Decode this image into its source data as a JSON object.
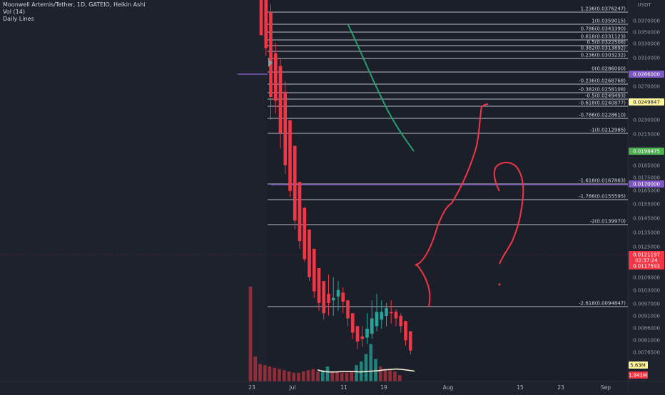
{
  "header": {
    "title": "Moonwell Artemis/Tether, 1D, GATEIO, Heikin Ashi",
    "vol": "Vol (14)",
    "indicator": "Daily Lines"
  },
  "chart_data": {
    "type": "candlestick",
    "heikin_ashi": true,
    "currency": "USDT",
    "price_range": [
      0.0097,
      0.0385
    ],
    "axis_ticks": [
      "0.0370000",
      "0.0350000",
      "0.0330000",
      "0.0310000",
      "0.0270000",
      "0.0230000",
      "0.0215000",
      "0.0185000",
      "0.0175000",
      "0.0165000",
      "0.0155000",
      "0.0145000",
      "0.0135000",
      "0.0125000",
      "0.0109000",
      "0.0103000",
      "0.0097000",
      "0.0091000",
      "0.0086000",
      "0.0081000",
      "0.0076500"
    ],
    "x_ticks": [
      "23",
      "Jul",
      "11",
      "19",
      "Aug",
      "15",
      "23",
      "Sep"
    ],
    "fib_levels": [
      {
        "label": "1.236(0.0376247)",
        "value": 0.0376247
      },
      {
        "label": "1(0.0359015)",
        "value": 0.0359015
      },
      {
        "label": "0.786(0.0343390)",
        "value": 0.034339
      },
      {
        "label": "0.618(0.0331123)",
        "value": 0.0331123
      },
      {
        "label": "0.5(0.0322508)",
        "value": 0.0322508
      },
      {
        "label": "0.382(0.0313892)",
        "value": 0.0313892
      },
      {
        "label": "0.236(0.0303232)",
        "value": 0.0303232
      },
      {
        "label": "0(0.0286000)",
        "value": 0.0286
      },
      {
        "label": "-0.236(0.0268768)",
        "value": 0.0268768
      },
      {
        "label": "-0.382(0.0258108)",
        "value": 0.0258108
      },
      {
        "label": "-0.5(0.0249493)",
        "value": 0.0249493
      },
      {
        "label": "-0.618(0.0240877)",
        "value": 0.0240877
      },
      {
        "label": "-0.786(0.0228610)",
        "value": 0.022861
      },
      {
        "label": "-1(0.0212985)",
        "value": 0.0212985
      },
      {
        "label": "-1.618(0.0167863)",
        "value": 0.0167863
      },
      {
        "label": "-1.786(0.0155595)",
        "value": 0.0155595
      },
      {
        "label": "-2(0.0139970)",
        "value": 0.013997
      },
      {
        "label": "-2.618(0.0094847)",
        "value": 0.0094847
      }
    ],
    "horizontal_lines": [
      {
        "price": 0.0286,
        "color": "#7e57c2"
      },
      {
        "price": 0.017,
        "color": "#7e57c2"
      }
    ],
    "price_badges": [
      {
        "text": "0.0286000",
        "price": 0.0286,
        "color": "#7e57c2",
        "fg": "#ffffff"
      },
      {
        "text": "0.0249847",
        "price": 0.0249847,
        "color": "#fff59d",
        "fg": "#131722"
      },
      {
        "text": "0.0198475",
        "price": 0.0198475,
        "color": "#4caf50",
        "fg": "#ffffff"
      },
      {
        "text": "0.0170000",
        "price": 0.017,
        "color": "#7e57c2",
        "fg": "#ffffff"
      },
      {
        "text": "0.0121197",
        "price": 0.0121197,
        "color": "#f23645",
        "fg": "#ffffff"
      },
      {
        "text": "02:37:24",
        "price": 0.0119,
        "color": "#f23645",
        "fg": "#ffffff"
      },
      {
        "text": "0.0117593",
        "price": 0.0117593,
        "color": "#f23645",
        "fg": "#ffffff"
      }
    ],
    "volume_badges": [
      {
        "text": "5.63M",
        "color": "#fff59d",
        "fg": "#131722"
      },
      {
        "text": "1.941M",
        "color": "#f23645",
        "fg": "#ffffff"
      }
    ],
    "candles": [
      {
        "o": 0.04,
        "h": 0.04,
        "l": 0.0366,
        "c": 0.0366,
        "v": 38
      },
      {
        "o": 0.0394,
        "h": 0.04,
        "l": 0.035,
        "c": 0.0356,
        "v": 10
      },
      {
        "o": 0.0384,
        "h": 0.039,
        "l": 0.03,
        "c": 0.0318,
        "v": 7
      },
      {
        "o": 0.0352,
        "h": 0.036,
        "l": 0.0305,
        "c": 0.0315,
        "v": 6.5
      },
      {
        "o": 0.0342,
        "h": 0.0348,
        "l": 0.0278,
        "c": 0.029,
        "v": 6
      },
      {
        "o": 0.0322,
        "h": 0.033,
        "l": 0.0258,
        "c": 0.0265,
        "v": 5.5
      },
      {
        "o": 0.03,
        "h": 0.03,
        "l": 0.024,
        "c": 0.0245,
        "v": 5
      },
      {
        "o": 0.028,
        "h": 0.028,
        "l": 0.0215,
        "c": 0.0222,
        "v": 4.5
      },
      {
        "o": 0.0252,
        "h": 0.0252,
        "l": 0.02,
        "c": 0.0206,
        "v": 4
      },
      {
        "o": 0.0232,
        "h": 0.0232,
        "l": 0.019,
        "c": 0.0192,
        "v": 3.5
      },
      {
        "o": 0.0215,
        "h": 0.0215,
        "l": 0.0175,
        "c": 0.0178,
        "v": 3.5
      },
      {
        "o": 0.02,
        "h": 0.02,
        "l": 0.0162,
        "c": 0.0167,
        "v": 4
      },
      {
        "o": 0.0185,
        "h": 0.0185,
        "l": 0.0152,
        "c": 0.0158,
        "v": 4.5
      },
      {
        "o": 0.0175,
        "h": 0.0175,
        "l": 0.0145,
        "c": 0.015,
        "v": 5
      },
      {
        "o": 0.0165,
        "h": 0.018,
        "l": 0.0148,
        "c": 0.0158,
        "v": 4
      },
      {
        "o": 0.016,
        "h": 0.0178,
        "l": 0.0148,
        "c": 0.0162,
        "v": 4.5
      },
      {
        "o": 0.0163,
        "h": 0.0175,
        "l": 0.0152,
        "c": 0.0168,
        "v": 6
      },
      {
        "o": 0.0166,
        "h": 0.017,
        "l": 0.015,
        "c": 0.0159,
        "v": 4
      },
      {
        "o": 0.016,
        "h": 0.016,
        "l": 0.014,
        "c": 0.0146,
        "v": 4
      },
      {
        "o": 0.015,
        "h": 0.015,
        "l": 0.013,
        "c": 0.0135,
        "v": 3.5
      },
      {
        "o": 0.014,
        "h": 0.014,
        "l": 0.0122,
        "c": 0.0128,
        "v": 3.5
      },
      {
        "o": 0.0132,
        "h": 0.014,
        "l": 0.0124,
        "c": 0.013,
        "v": 4
      },
      {
        "o": 0.0131,
        "h": 0.015,
        "l": 0.0126,
        "c": 0.0138,
        "v": 6.5
      },
      {
        "o": 0.0134,
        "h": 0.016,
        "l": 0.013,
        "c": 0.0146,
        "v": 8
      },
      {
        "o": 0.014,
        "h": 0.0165,
        "l": 0.0136,
        "c": 0.0151,
        "v": 11
      },
      {
        "o": 0.0145,
        "h": 0.016,
        "l": 0.0138,
        "c": 0.0151,
        "v": 15
      },
      {
        "o": 0.0148,
        "h": 0.0158,
        "l": 0.014,
        "c": 0.0154,
        "v": 9
      },
      {
        "o": 0.0151,
        "h": 0.016,
        "l": 0.0142,
        "c": 0.015,
        "v": 6
      },
      {
        "o": 0.0151,
        "h": 0.0153,
        "l": 0.014,
        "c": 0.0146,
        "v": 5
      },
      {
        "o": 0.0148,
        "h": 0.015,
        "l": 0.0135,
        "c": 0.014,
        "v": 4.5
      },
      {
        "o": 0.0144,
        "h": 0.0144,
        "l": 0.0125,
        "c": 0.0129,
        "v": 4
      },
      {
        "o": 0.0136,
        "h": 0.0136,
        "l": 0.0118,
        "c": 0.0121,
        "v": 2.5
      }
    ],
    "volume_ma": [
      2.8,
      2.4,
      2.3,
      2.3,
      2.4,
      2.4,
      2.4,
      2.3,
      2.4,
      2.5,
      2.6,
      2.8,
      2.9,
      3.0,
      2.9,
      2.7,
      2.5
    ]
  }
}
